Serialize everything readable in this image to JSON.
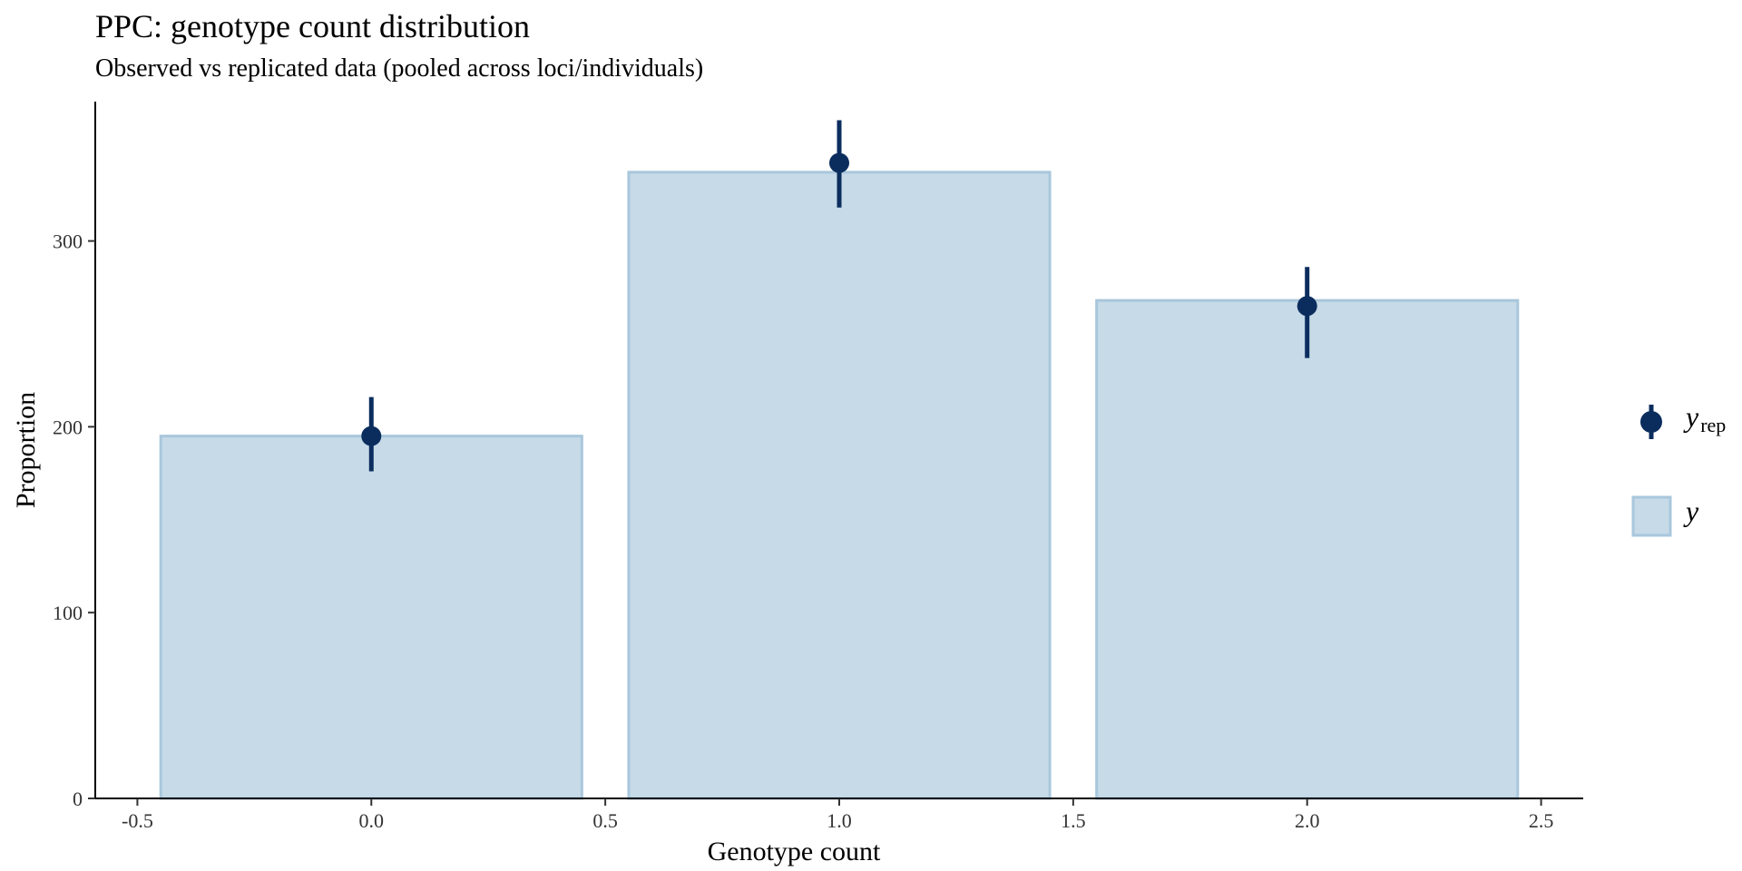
{
  "chart_data": {
    "type": "bar",
    "title": "PPC: genotype count distribution",
    "subtitle": "Observed vs replicated data (pooled across loci/individuals)",
    "xlabel": "Genotype count",
    "ylabel": "Proportion",
    "xlim": [
      -0.59,
      2.59
    ],
    "ylim": [
      0,
      375
    ],
    "x_ticks": [
      -0.5,
      0.0,
      0.5,
      1.0,
      1.5,
      2.0,
      2.5
    ],
    "x_tick_labels": [
      "-0.5",
      "0.0",
      "0.5",
      "1.0",
      "1.5",
      "2.0",
      "2.5"
    ],
    "y_ticks": [
      0,
      100,
      200,
      300
    ],
    "y_tick_labels": [
      "0",
      "100",
      "200",
      "300"
    ],
    "bar_width": 0.9,
    "grid": false,
    "legend_position": "right",
    "series": [
      {
        "key": "y",
        "label": "y",
        "type": "bar",
        "x": [
          0,
          1,
          2
        ],
        "values": [
          195,
          337,
          268
        ],
        "fill": "#c6dae8",
        "stroke": "#a9c7dc"
      },
      {
        "key": "yrep",
        "label_main": "y",
        "label_sub": "rep",
        "type": "pointrange",
        "x": [
          0,
          1,
          2
        ],
        "values": [
          195,
          342,
          265
        ],
        "lower": [
          176,
          318,
          237
        ],
        "upper": [
          216,
          365,
          286
        ],
        "color": "#0b2d5e"
      }
    ]
  }
}
